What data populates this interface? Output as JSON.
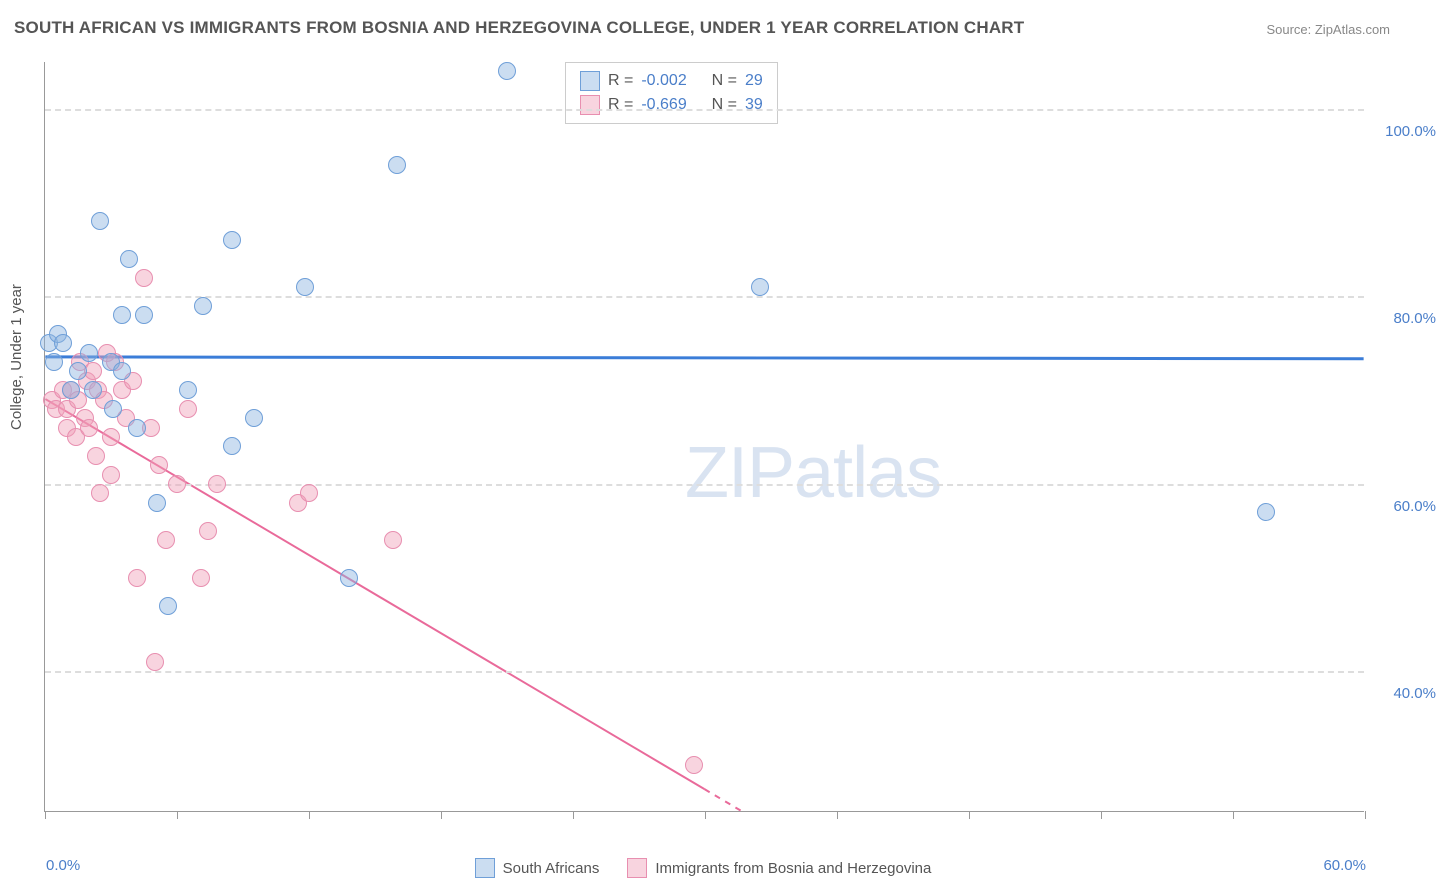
{
  "title": "SOUTH AFRICAN VS IMMIGRANTS FROM BOSNIA AND HERZEGOVINA COLLEGE, UNDER 1 YEAR CORRELATION CHART",
  "source": "Source: ZipAtlas.com",
  "yaxis_title": "College, Under 1 year",
  "watermark_bold": "ZIP",
  "watermark_light": "atlas",
  "plot": {
    "bg": "#ffffff",
    "border_color": "#999999",
    "grid_color": "#dddddd",
    "xlim": [
      0,
      60
    ],
    "ylim": [
      25,
      105
    ],
    "yticks": [
      40,
      60,
      80,
      100
    ],
    "ytick_labels": [
      "40.0%",
      "60.0%",
      "80.0%",
      "100.0%"
    ],
    "xticks": [
      0,
      6,
      12,
      18,
      24,
      30,
      36,
      42,
      48,
      54,
      60
    ],
    "x_first_label": "0.0%",
    "x_last_label": "60.0%"
  },
  "series": {
    "blue": {
      "label": "South Africans",
      "fill": "rgba(140,180,225,0.45)",
      "stroke": "#6f9fd8",
      "trend_color": "#3b7dd8",
      "trend_width": 3,
      "trend_y1": 73.5,
      "trend_y2": 73.3,
      "R": "-0.002",
      "N": "29",
      "marker_radius": 9,
      "points": [
        [
          0.2,
          75
        ],
        [
          0.4,
          73
        ],
        [
          0.6,
          76
        ],
        [
          0.8,
          75
        ],
        [
          1.2,
          70
        ],
        [
          1.5,
          72
        ],
        [
          2.0,
          74
        ],
        [
          2.2,
          70
        ],
        [
          2.5,
          88
        ],
        [
          3.0,
          73
        ],
        [
          3.1,
          68
        ],
        [
          3.5,
          78
        ],
        [
          3.5,
          72
        ],
        [
          3.8,
          84
        ],
        [
          4.2,
          66
        ],
        [
          4.5,
          78
        ],
        [
          5.1,
          58
        ],
        [
          5.6,
          47
        ],
        [
          6.5,
          70
        ],
        [
          7.2,
          79
        ],
        [
          8.5,
          86
        ],
        [
          8.5,
          64
        ],
        [
          9.5,
          67
        ],
        [
          11.8,
          81
        ],
        [
          13.8,
          50
        ],
        [
          16.0,
          94
        ],
        [
          21.0,
          104
        ],
        [
          32.5,
          81
        ],
        [
          55.5,
          57
        ]
      ]
    },
    "pink": {
      "label": "Immigrants from Bosnia and Herzegovina",
      "fill": "rgba(240,160,185,0.45)",
      "stroke": "#e88fb0",
      "trend_color": "#e96a9a",
      "trend_width": 2,
      "trend_y1": 69,
      "trend_y2_at_x": 36,
      "trend_y2": 19,
      "R": "-0.669",
      "N": "39",
      "marker_radius": 9,
      "points": [
        [
          0.3,
          69
        ],
        [
          0.5,
          68
        ],
        [
          0.8,
          70
        ],
        [
          1.0,
          68
        ],
        [
          1.0,
          66
        ],
        [
          1.2,
          70
        ],
        [
          1.4,
          65
        ],
        [
          1.5,
          69
        ],
        [
          1.6,
          73
        ],
        [
          1.8,
          67
        ],
        [
          1.9,
          71
        ],
        [
          2.0,
          66
        ],
        [
          2.2,
          72
        ],
        [
          2.3,
          63
        ],
        [
          2.4,
          70
        ],
        [
          2.5,
          59
        ],
        [
          2.7,
          69
        ],
        [
          2.8,
          74
        ],
        [
          3.0,
          65
        ],
        [
          3.0,
          61
        ],
        [
          3.2,
          73
        ],
        [
          3.5,
          70
        ],
        [
          3.7,
          67
        ],
        [
          4.0,
          71
        ],
        [
          4.2,
          50
        ],
        [
          4.5,
          82
        ],
        [
          4.8,
          66
        ],
        [
          5.0,
          41
        ],
        [
          5.2,
          62
        ],
        [
          5.5,
          54
        ],
        [
          6.0,
          60
        ],
        [
          6.5,
          68
        ],
        [
          7.1,
          50
        ],
        [
          7.4,
          55
        ],
        [
          7.8,
          60
        ],
        [
          11.5,
          58
        ],
        [
          12.0,
          59
        ],
        [
          15.8,
          54
        ],
        [
          29.5,
          30
        ]
      ]
    }
  },
  "legend": {
    "R_label": "R =",
    "N_label": "N ="
  }
}
